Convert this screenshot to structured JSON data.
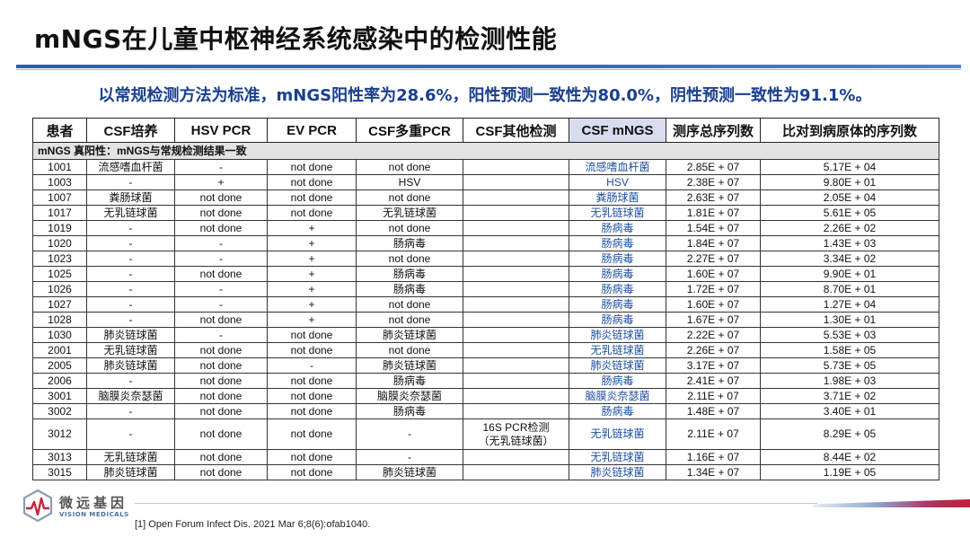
{
  "slide": {
    "title": "mNGS在儿童中枢神经系统感染中的检测性能",
    "subtitle": "以常规检测方法为标准，mNGS阳性率为28.6%，阳性预测一致性为80.0%，阴性预测一致性为91.1%。"
  },
  "table": {
    "headers": [
      "患者",
      "CSF培养",
      "HSV PCR",
      "EV PCR",
      "CSF多重PCR",
      "CSF其他检测",
      "CSF mNGS",
      "测序总序列数",
      "比对到病原体的序列数"
    ],
    "section_label": "mNGS 真阳性：mNGS与常规检测结果一致",
    "rows": [
      [
        "1001",
        "流感嗜血杆菌",
        "-",
        "not done",
        "not done",
        "",
        "流感嗜血杆菌",
        "2.85E + 07",
        "5.17E + 04"
      ],
      [
        "1003",
        "-",
        "+",
        "not done",
        "HSV",
        "",
        "HSV",
        "2.38E + 07",
        "9.80E + 01"
      ],
      [
        "1007",
        "粪肠球菌",
        "not done",
        "not done",
        "not done",
        "",
        "粪肠球菌",
        "2.63E + 07",
        "2.05E + 04"
      ],
      [
        "1017",
        "无乳链球菌",
        "not done",
        "not done",
        "无乳链球菌",
        "",
        "无乳链球菌",
        "1.81E + 07",
        "5.61E + 05"
      ],
      [
        "1019",
        "-",
        "not done",
        "+",
        "not done",
        "",
        "肠病毒",
        "1.54E + 07",
        "2.26E + 02"
      ],
      [
        "1020",
        "-",
        "-",
        "+",
        "肠病毒",
        "",
        "肠病毒",
        "1.84E + 07",
        "1.43E + 03"
      ],
      [
        "1023",
        "-",
        "-",
        "+",
        "not done",
        "",
        "肠病毒",
        "2.27E + 07",
        "3.34E + 02"
      ],
      [
        "1025",
        "-",
        "not done",
        "+",
        "肠病毒",
        "",
        "肠病毒",
        "1.60E + 07",
        "9.90E + 01"
      ],
      [
        "1026",
        "-",
        "-",
        "+",
        "肠病毒",
        "",
        "肠病毒",
        "1.72E + 07",
        "8.70E + 01"
      ],
      [
        "1027",
        "-",
        "-",
        "+",
        "not done",
        "",
        "肠病毒",
        "1.60E + 07",
        "1.27E + 04"
      ],
      [
        "1028",
        "-",
        "not done",
        "+",
        "not done",
        "",
        "肠病毒",
        "1.67E + 07",
        "1.30E + 01"
      ],
      [
        "1030",
        "肺炎链球菌",
        "-",
        "not done",
        "肺炎链球菌",
        "",
        "肺炎链球菌",
        "2.22E + 07",
        "5.53E + 03"
      ],
      [
        "2001",
        "无乳链球菌",
        "not done",
        "not done",
        "not done",
        "",
        "无乳链球菌",
        "2.26E + 07",
        "1.58E + 05"
      ],
      [
        "2005",
        "肺炎链球菌",
        "not done",
        "-",
        "肺炎链球菌",
        "",
        "肺炎链球菌",
        "3.17E + 07",
        "5.73E + 05"
      ],
      [
        "2006",
        "-",
        "not done",
        "not done",
        "肠病毒",
        "",
        "肠病毒",
        "2.41E + 07",
        "1.98E + 03"
      ],
      [
        "3001",
        "脑膜炎奈瑟菌",
        "not done",
        "not done",
        "脑膜炎奈瑟菌",
        "",
        "脑膜炎奈瑟菌",
        "2.11E + 07",
        "3.71E + 02"
      ],
      [
        "3002",
        "-",
        "not done",
        "not done",
        "肠病毒",
        "",
        "肠病毒",
        "1.48E + 07",
        "3.40E + 01"
      ],
      [
        "3012",
        "-",
        "not done",
        "not done",
        "-",
        "16S PCR检测\n（无乳链球菌）",
        "无乳链球菌",
        "2.11E + 07",
        "8.29E + 05"
      ],
      [
        "3013",
        "无乳链球菌",
        "not done",
        "not done",
        "-",
        "",
        "无乳链球菌",
        "1.16E + 07",
        "8.44E + 02"
      ],
      [
        "3015",
        "肺炎链球菌",
        "not done",
        "not done",
        "肺炎链球菌",
        "",
        "肺炎链球菌",
        "1.34E + 07",
        "1.19E + 05"
      ]
    ]
  },
  "footer": {
    "logo_cn": "微远基因",
    "logo_en": "VISION MEDICALS",
    "reference": "[1] Open Forum Infect Dis. 2021 Mar 6;8(6):ofab1040.",
    "logo_icon": "vision-medicals-logo"
  }
}
